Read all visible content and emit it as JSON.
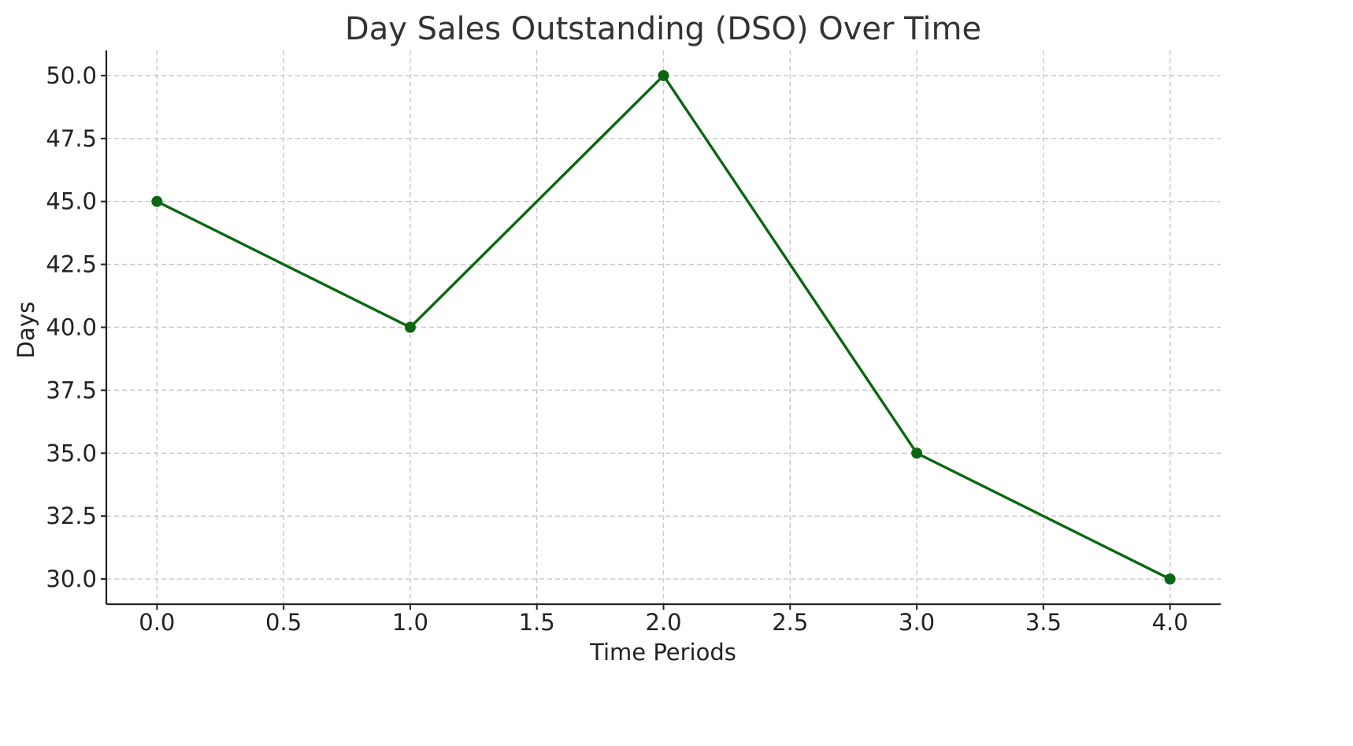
{
  "chart_data": {
    "type": "line",
    "title": "Day Sales Outstanding (DSO) Over Time",
    "xlabel": "Time Periods",
    "ylabel": "Days",
    "x": [
      0,
      1,
      2,
      3,
      4
    ],
    "series": [
      {
        "values": [
          45,
          40,
          50,
          35,
          30
        ]
      }
    ],
    "xlim": [
      -0.2,
      4.2
    ],
    "ylim": [
      29,
      51
    ],
    "x_ticks": [
      0.0,
      0.5,
      1.0,
      1.5,
      2.0,
      2.5,
      3.0,
      3.5,
      4.0
    ],
    "y_ticks": [
      30.0,
      32.5,
      35.0,
      37.5,
      40.0,
      42.5,
      45.0,
      47.5,
      50.0
    ],
    "tick_decimals": 1,
    "grid": true,
    "line_color": "#0b6612",
    "marker": "circle"
  }
}
